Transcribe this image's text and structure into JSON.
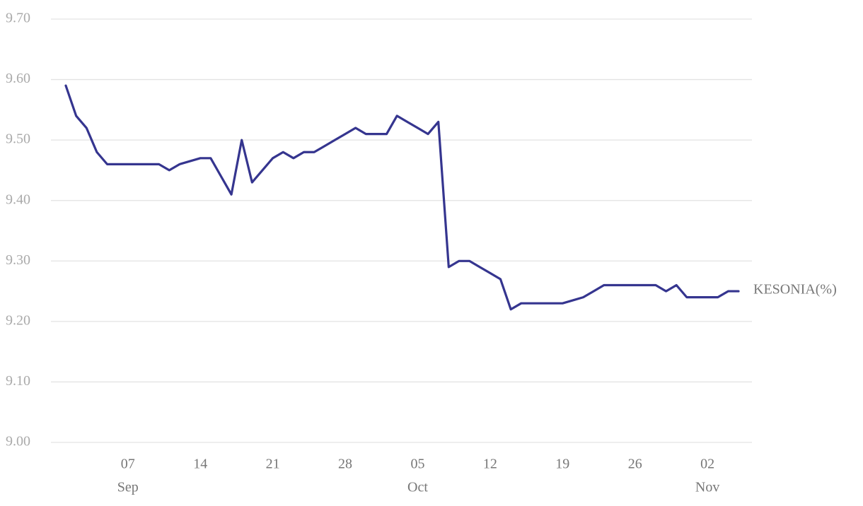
{
  "chart_data": {
    "type": "line",
    "x": [
      "Sep 01",
      "Sep 02",
      "Sep 03",
      "Sep 04",
      "Sep 05",
      "Sep 06",
      "Sep 07",
      "Sep 08",
      "Sep 09",
      "Sep 10",
      "Sep 11",
      "Sep 12",
      "Sep 13",
      "Sep 14",
      "Sep 15",
      "Sep 16",
      "Sep 17",
      "Sep 18",
      "Sep 19",
      "Sep 20",
      "Sep 21",
      "Sep 22",
      "Sep 23",
      "Sep 24",
      "Sep 25",
      "Sep 26",
      "Sep 27",
      "Sep 28",
      "Sep 29",
      "Sep 30",
      "Oct 01",
      "Oct 02",
      "Oct 03",
      "Oct 04",
      "Oct 05",
      "Oct 06",
      "Oct 07",
      "Oct 08",
      "Oct 09",
      "Oct 10",
      "Oct 11",
      "Oct 12",
      "Oct 13",
      "Oct 14",
      "Oct 15",
      "Oct 16",
      "Oct 17",
      "Oct 18",
      "Oct 19",
      "Oct 20",
      "Oct 21",
      "Oct 22",
      "Oct 23",
      "Oct 24",
      "Oct 25",
      "Oct 26",
      "Oct 27",
      "Oct 28",
      "Oct 29",
      "Oct 30",
      "Oct 31",
      "Nov 01",
      "Nov 02",
      "Nov 03",
      "Nov 04",
      "Nov 05"
    ],
    "series": [
      {
        "name": "KESONIA(%)",
        "color": "#35358f",
        "values": [
          9.59,
          9.54,
          9.52,
          9.48,
          9.46,
          9.46,
          9.46,
          9.46,
          9.46,
          9.46,
          9.45,
          9.46,
          9.465,
          9.47,
          9.47,
          9.44,
          9.41,
          9.5,
          9.43,
          9.45,
          9.47,
          9.48,
          9.47,
          9.48,
          9.48,
          9.49,
          9.5,
          9.51,
          9.52,
          9.51,
          9.51,
          9.51,
          9.54,
          9.53,
          9.52,
          9.51,
          9.53,
          9.29,
          9.3,
          9.3,
          9.29,
          9.28,
          9.27,
          9.22,
          9.23,
          9.23,
          9.23,
          9.23,
          9.23,
          9.235,
          9.24,
          9.25,
          9.26,
          9.26,
          9.26,
          9.26,
          9.26,
          9.26,
          9.25,
          9.26,
          9.24,
          9.24,
          9.24,
          9.24,
          9.25,
          9.25
        ]
      }
    ],
    "xlim": [
      "Sep 01",
      "Nov 05"
    ],
    "xticks": [
      {
        "value": "Sep 07",
        "label": "07"
      },
      {
        "value": "Sep 14",
        "label": "14"
      },
      {
        "value": "Sep 21",
        "label": "21"
      },
      {
        "value": "Sep 28",
        "label": "28"
      },
      {
        "value": "Oct 05",
        "label": "05"
      },
      {
        "value": "Oct 12",
        "label": "12"
      },
      {
        "value": "Oct 19",
        "label": "19"
      },
      {
        "value": "Oct 26",
        "label": "26"
      },
      {
        "value": "Nov 02",
        "label": "02"
      }
    ],
    "xtick_months": [
      {
        "value": "Sep 07",
        "label": "Sep"
      },
      {
        "value": "Oct 05",
        "label": "Oct"
      },
      {
        "value": "Nov 02",
        "label": "Nov"
      }
    ],
    "ylim": [
      9.0,
      9.7
    ],
    "yticks": [
      {
        "value": 9.0,
        "label": "9.00"
      },
      {
        "value": 9.1,
        "label": "9.10"
      },
      {
        "value": 9.2,
        "label": "9.20"
      },
      {
        "value": 9.3,
        "label": "9.30"
      },
      {
        "value": 9.4,
        "label": "9.40"
      },
      {
        "value": 9.5,
        "label": "9.50"
      },
      {
        "value": 9.6,
        "label": "9.60"
      },
      {
        "value": 9.7,
        "label": "9.70"
      }
    ],
    "grid": true
  }
}
